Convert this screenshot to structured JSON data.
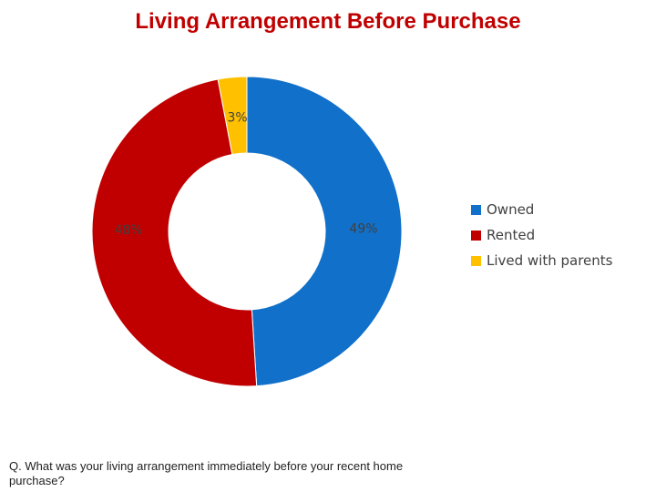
{
  "title": "Living Arrangement Before Purchase",
  "footnote": "Q. What was your living arrangement immediately before your recent home purchase?",
  "chart_data": {
    "type": "pie",
    "variant": "donut",
    "categories": [
      "Owned",
      "Rented",
      "Lived with parents"
    ],
    "values": [
      49,
      48,
      3
    ],
    "labels": [
      "49%",
      "48%",
      "3%"
    ],
    "colors": [
      "#1170c9",
      "#c00000",
      "#ffc000"
    ],
    "start": "12 o'clock, clockwise",
    "legend_position": "right"
  }
}
